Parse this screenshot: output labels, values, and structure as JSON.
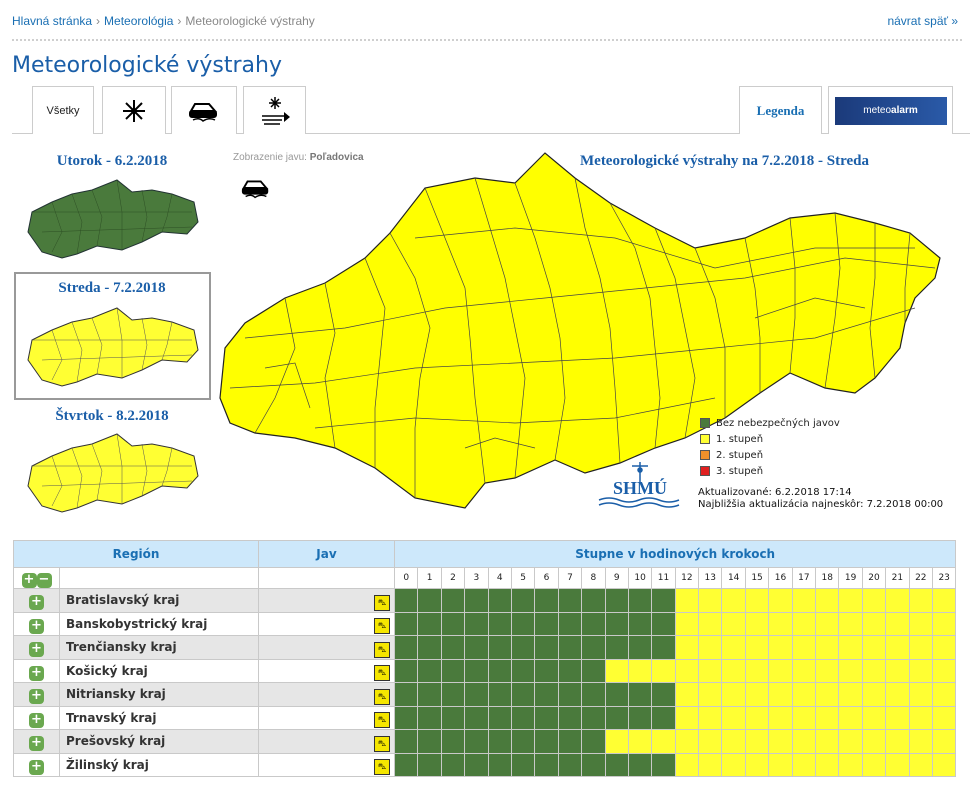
{
  "breadcrumb": [
    "Hlavná stránka",
    "Meteorológia",
    "Meteorologické výstrahy"
  ],
  "back_link": "návrat späť »",
  "page_title": "Meteorologické výstrahy",
  "tabs": {
    "all_label": "Všetky",
    "legend_label": "Legenda",
    "logo_text_1": "meteo",
    "logo_text_2": "alarm",
    "logo_subtext": "alerting europe for extreme weather"
  },
  "days": [
    {
      "label": "Utorok - 6.2.2018",
      "color": "#4a7a3c"
    },
    {
      "label": "Streda - 7.2.2018",
      "color": "#ffff33"
    },
    {
      "label": "Štvrtok - 8.2.2018",
      "color": "#ffff33"
    }
  ],
  "display": {
    "prefix": "Zobrazenie javu:",
    "value": "Poľadovica"
  },
  "map_title": "Meteorologické výstrahy na 7.2.2018 - Streda",
  "legend": [
    {
      "label": "Bez nebezpečných javov",
      "color": "#4a7a3c"
    },
    {
      "label": "1. stupeň",
      "color": "#ffff33"
    },
    {
      "label": "2. stupeň",
      "color": "#f0902a"
    },
    {
      "label": "3. stupeň",
      "color": "#e02020"
    }
  ],
  "shmu_label": "SHMÚ",
  "update": {
    "updated": "Aktualizované: 6.2.2018 17:14",
    "next": "Najbližšia aktualizácia najneskôr: 7.2.2018 00:00"
  },
  "table": {
    "headers": {
      "region": "Región",
      "jav": "Jav",
      "hours": "Stupne v hodinových krokoch"
    },
    "hours": [
      "0",
      "1",
      "2",
      "3",
      "4",
      "5",
      "6",
      "7",
      "8",
      "9",
      "10",
      "11",
      "12",
      "13",
      "14",
      "15",
      "16",
      "17",
      "18",
      "19",
      "20",
      "21",
      "22",
      "23"
    ],
    "colors": {
      "0": "#4a7a3c",
      "1": "#ffff33"
    },
    "rows": [
      {
        "name": "Bratislavský kraj",
        "levels": [
          0,
          0,
          0,
          0,
          0,
          0,
          0,
          0,
          0,
          0,
          0,
          0,
          1,
          1,
          1,
          1,
          1,
          1,
          1,
          1,
          1,
          1,
          1,
          1
        ]
      },
      {
        "name": "Banskobystrický kraj",
        "levels": [
          0,
          0,
          0,
          0,
          0,
          0,
          0,
          0,
          0,
          0,
          0,
          0,
          1,
          1,
          1,
          1,
          1,
          1,
          1,
          1,
          1,
          1,
          1,
          1
        ]
      },
      {
        "name": "Trenčiansky kraj",
        "levels": [
          0,
          0,
          0,
          0,
          0,
          0,
          0,
          0,
          0,
          0,
          0,
          0,
          1,
          1,
          1,
          1,
          1,
          1,
          1,
          1,
          1,
          1,
          1,
          1
        ]
      },
      {
        "name": "Košický kraj",
        "levels": [
          0,
          0,
          0,
          0,
          0,
          0,
          0,
          0,
          0,
          1,
          1,
          1,
          1,
          1,
          1,
          1,
          1,
          1,
          1,
          1,
          1,
          1,
          1,
          1
        ]
      },
      {
        "name": "Nitriansky kraj",
        "levels": [
          0,
          0,
          0,
          0,
          0,
          0,
          0,
          0,
          0,
          0,
          0,
          0,
          1,
          1,
          1,
          1,
          1,
          1,
          1,
          1,
          1,
          1,
          1,
          1
        ]
      },
      {
        "name": "Trnavský kraj",
        "levels": [
          0,
          0,
          0,
          0,
          0,
          0,
          0,
          0,
          0,
          0,
          0,
          0,
          1,
          1,
          1,
          1,
          1,
          1,
          1,
          1,
          1,
          1,
          1,
          1
        ]
      },
      {
        "name": "Prešovský kraj",
        "levels": [
          0,
          0,
          0,
          0,
          0,
          0,
          0,
          0,
          0,
          1,
          1,
          1,
          1,
          1,
          1,
          1,
          1,
          1,
          1,
          1,
          1,
          1,
          1,
          1
        ]
      },
      {
        "name": "Žilinský kraj",
        "levels": [
          0,
          0,
          0,
          0,
          0,
          0,
          0,
          0,
          0,
          0,
          0,
          0,
          1,
          1,
          1,
          1,
          1,
          1,
          1,
          1,
          1,
          1,
          1,
          1
        ]
      }
    ]
  }
}
